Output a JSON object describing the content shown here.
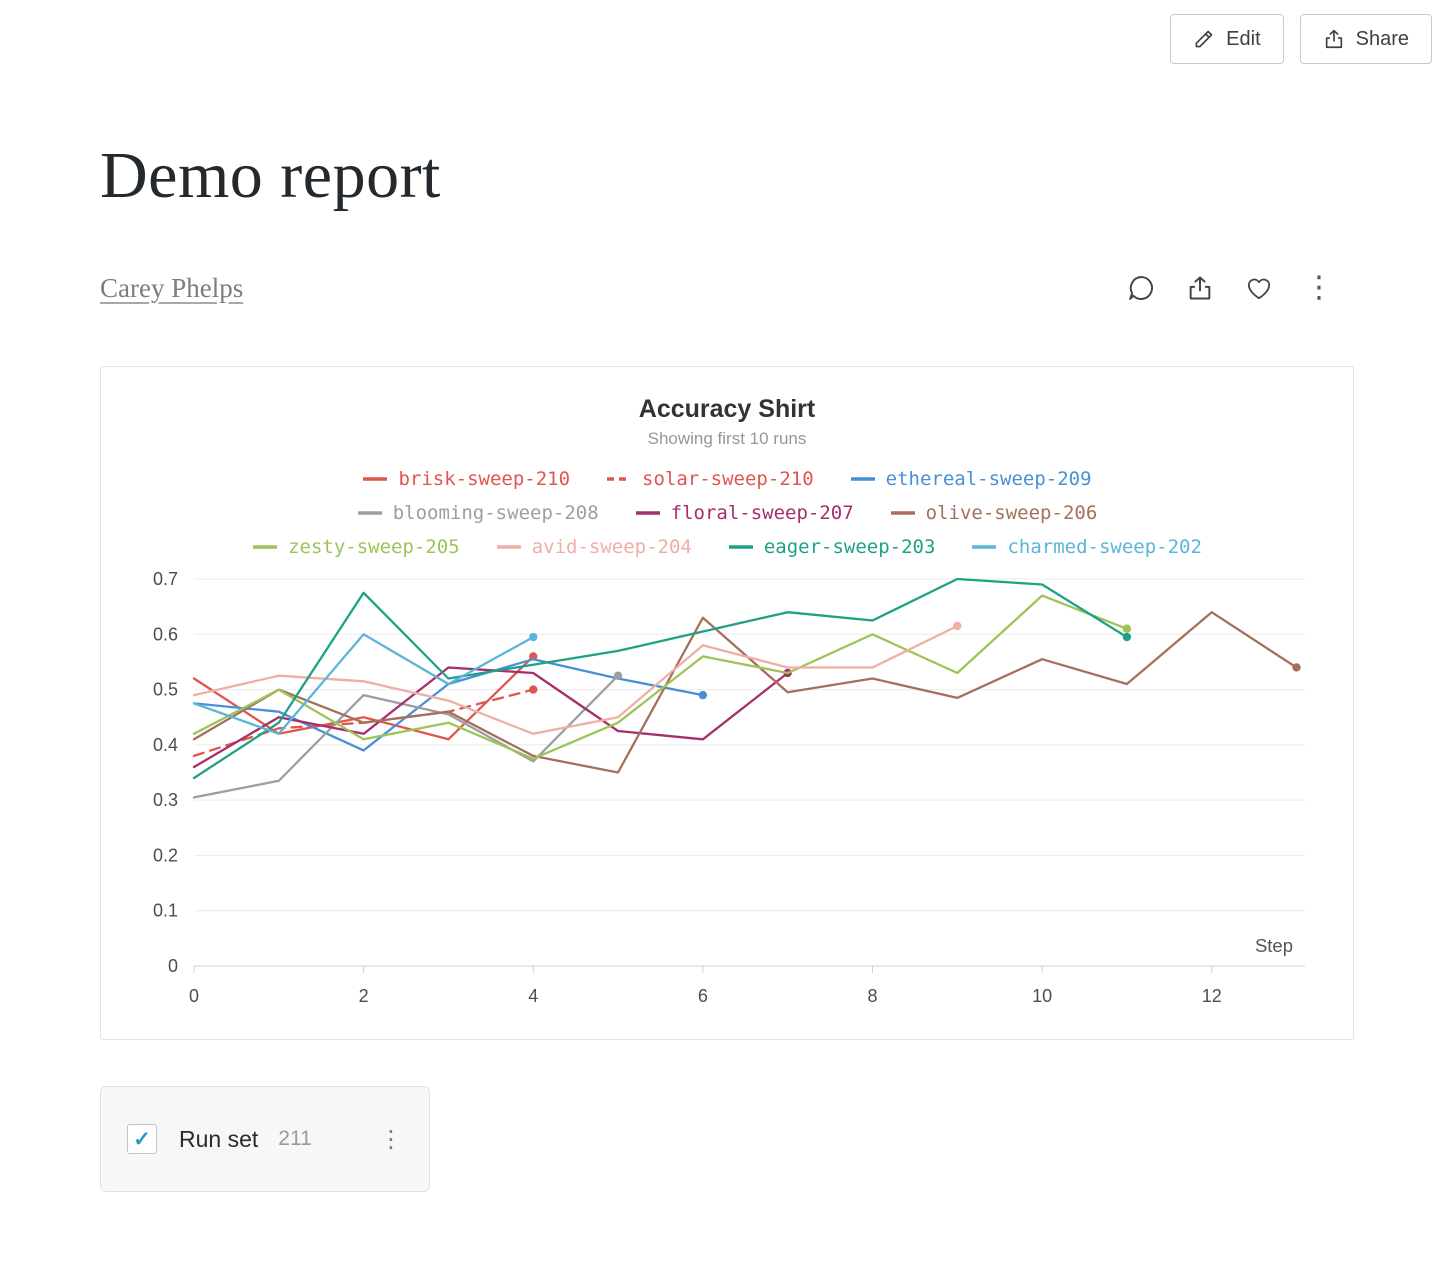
{
  "toolbar": {
    "edit_label": "Edit",
    "share_label": "Share"
  },
  "report": {
    "title": "Demo report",
    "author": "Carey Phelps"
  },
  "icons": {
    "kebab": "⋮",
    "check": "✓"
  },
  "runset": {
    "label": "Run set",
    "count": "211",
    "checked": true
  },
  "chart_data": {
    "type": "line",
    "title": "Accuracy Shirt",
    "subtitle": "Showing first 10 runs",
    "xlabel": "Step",
    "ylabel": "",
    "xlim": [
      0,
      13.1
    ],
    "ylim": [
      0,
      0.7
    ],
    "x_ticks": [
      0,
      2,
      4,
      6,
      8,
      10,
      12
    ],
    "y_ticks": [
      0,
      0.1,
      0.2,
      0.3,
      0.4,
      0.5,
      0.6,
      0.7
    ],
    "grid": "horizontal",
    "legend_position": "top",
    "legend_rows": [
      3,
      3,
      4
    ],
    "series": [
      {
        "name": "brisk-sweep-210",
        "color": "#e0564f",
        "dash": false,
        "x": [
          0,
          1,
          2,
          3,
          4
        ],
        "y": [
          0.52,
          0.42,
          0.45,
          0.41,
          0.56
        ]
      },
      {
        "name": "solar-sweep-210",
        "color": "#e0564f",
        "dash": true,
        "x": [
          0,
          1,
          2,
          3,
          4
        ],
        "y": [
          0.38,
          0.43,
          0.44,
          0.46,
          0.5
        ]
      },
      {
        "name": "ethereal-sweep-209",
        "color": "#4a8fd6",
        "dash": false,
        "x": [
          0,
          1,
          2,
          3,
          4,
          5,
          6
        ],
        "y": [
          0.475,
          0.46,
          0.39,
          0.51,
          0.555,
          0.52,
          0.49
        ]
      },
      {
        "name": "blooming-sweep-208",
        "color": "#9c9ea0",
        "dash": false,
        "x": [
          0,
          1,
          2,
          3,
          4,
          5
        ],
        "y": [
          0.305,
          0.335,
          0.49,
          0.455,
          0.37,
          0.525
        ]
      },
      {
        "name": "floral-sweep-207",
        "color": "#a62f6b",
        "dash": false,
        "x": [
          0,
          1,
          2,
          3,
          4,
          5,
          6,
          7
        ],
        "y": [
          0.36,
          0.45,
          0.42,
          0.54,
          0.53,
          0.425,
          0.41,
          0.53
        ]
      },
      {
        "name": "olive-sweep-206",
        "color": "#a5705b",
        "dash": false,
        "x": [
          0,
          1,
          2,
          3,
          4,
          5,
          6,
          7,
          8,
          9,
          10,
          11,
          12,
          13
        ],
        "y": [
          0.41,
          0.5,
          0.44,
          0.46,
          0.38,
          0.35,
          0.63,
          0.495,
          0.52,
          0.485,
          0.555,
          0.51,
          0.64,
          0.54
        ]
      },
      {
        "name": "zesty-sweep-205",
        "color": "#9dc457",
        "dash": false,
        "x": [
          0,
          1,
          2,
          3,
          4,
          5,
          6,
          7,
          8,
          9,
          10,
          11
        ],
        "y": [
          0.42,
          0.5,
          0.41,
          0.44,
          0.375,
          0.44,
          0.56,
          0.53,
          0.6,
          0.53,
          0.67,
          0.61
        ]
      },
      {
        "name": "avid-sweep-204",
        "color": "#efaea6",
        "dash": false,
        "x": [
          0,
          1,
          2,
          3,
          4,
          5,
          6,
          7,
          8,
          9
        ],
        "y": [
          0.49,
          0.525,
          0.515,
          0.48,
          0.42,
          0.45,
          0.58,
          0.54,
          0.54,
          0.615
        ]
      },
      {
        "name": "eager-sweep-203",
        "color": "#1fa185",
        "dash": false,
        "x": [
          0,
          1,
          2,
          3,
          4,
          5,
          6,
          7,
          8,
          9,
          10,
          11
        ],
        "y": [
          0.34,
          0.44,
          0.675,
          0.52,
          0.545,
          0.57,
          0.605,
          0.64,
          0.625,
          0.7,
          0.69,
          0.595
        ]
      },
      {
        "name": "charmed-sweep-202",
        "color": "#5ab6d8",
        "dash": false,
        "x": [
          0,
          1,
          2,
          3,
          4
        ],
        "y": [
          0.475,
          0.42,
          0.6,
          0.51,
          0.595
        ]
      }
    ]
  }
}
